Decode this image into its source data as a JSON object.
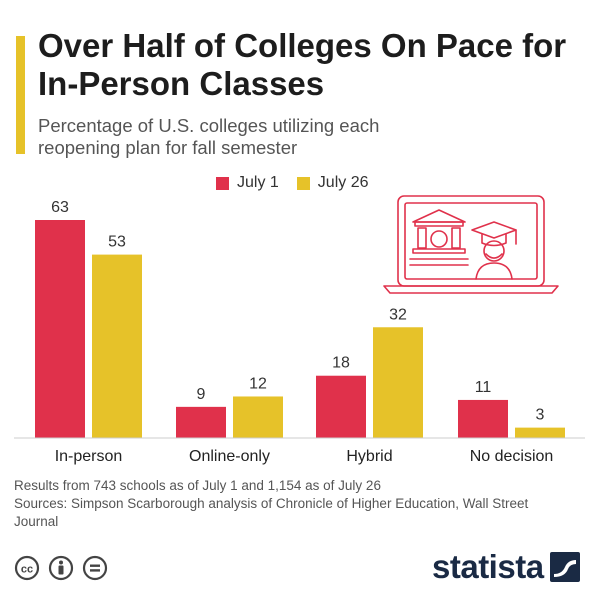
{
  "header": {
    "title": "Over Half of Colleges On Pace for In-Person Classes",
    "subtitle": "Percentage of U.S. colleges utilizing each reopening plan for fall semester"
  },
  "colors": {
    "july1": "#e0314b",
    "july26": "#e6c229",
    "illustration": "#e0314b"
  },
  "chart_data": {
    "type": "bar",
    "categories": [
      "In-person",
      "Online-only",
      "Hybrid",
      "No decision"
    ],
    "series": [
      {
        "name": "July 1",
        "values": [
          63,
          9,
          18,
          11
        ]
      },
      {
        "name": "July 26",
        "values": [
          53,
          12,
          32,
          3
        ]
      }
    ],
    "legend_position": "top",
    "grid": false,
    "ylim": [
      0,
      63
    ]
  },
  "footer": {
    "note": "Results from 743 schools as of July 1 and 1,154 as of July 26",
    "sources": "Sources: Simpson Scarborough analysis of Chronicle of Higher Education, Wall Street Journal"
  },
  "license_icons": [
    "creative-commons-icon",
    "attribution-icon",
    "no-derivatives-icon"
  ],
  "brand": {
    "logo_text": "statista"
  }
}
